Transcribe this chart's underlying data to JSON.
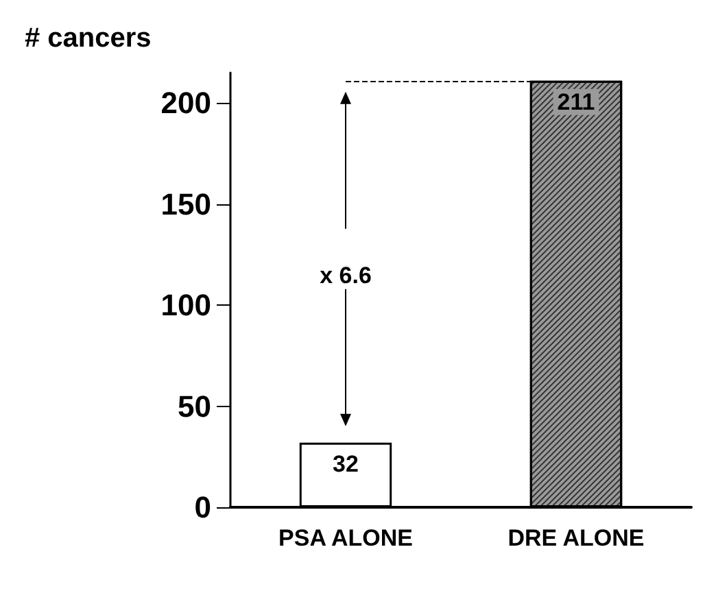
{
  "chart_data": {
    "type": "bar",
    "ylabel": "# cancers",
    "categories": [
      "PSA ALONE",
      "DRE ALONE"
    ],
    "values": [
      32,
      211
    ],
    "colors": [
      "#ffffff",
      "#9a9a9a"
    ],
    "ylim": [
      0,
      215
    ],
    "yticks": [
      0,
      50,
      100,
      150,
      200
    ],
    "grid": false,
    "data_labels": true,
    "ref_lines": [
      {
        "axis": "y",
        "value": 211,
        "line_style": "dashed",
        "color": "#000000"
      }
    ],
    "annotations": [
      "x 6.6"
    ]
  }
}
